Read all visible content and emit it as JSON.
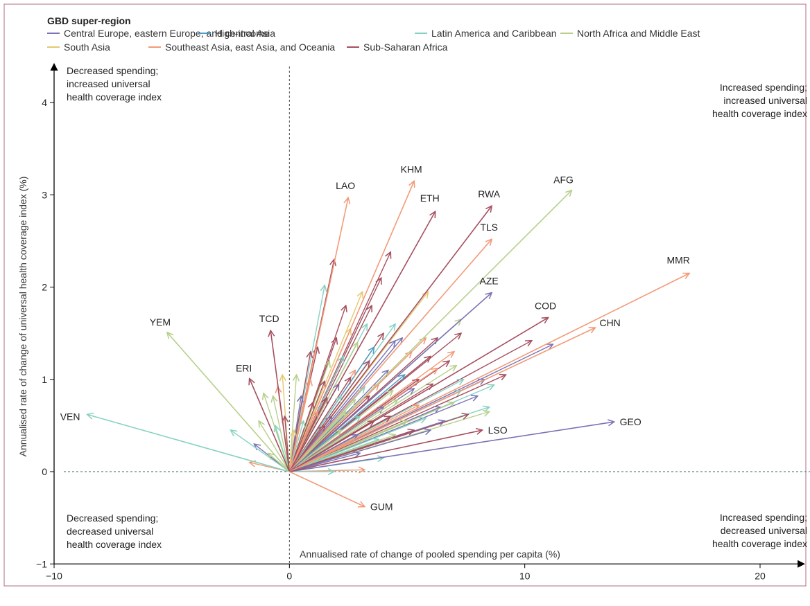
{
  "chart_data": {
    "type": "vector",
    "legend_title": "GBD super-region",
    "xlabel": "Annualised rate of change of pooled spending per capita (%)",
    "ylabel": "Annualised rate of change of universal health coverage index (%)",
    "xlim": [
      -10,
      22
    ],
    "ylim": [
      -1,
      4.4
    ],
    "xticks": [
      "−10",
      "0",
      "10",
      "20"
    ],
    "yticks": [
      "−1",
      "0",
      "1",
      "2",
      "3",
      "4"
    ],
    "quadrants": {
      "top_left": [
        "Decreased spending;",
        "increased universal",
        "health coverage index"
      ],
      "top_right": [
        "Increased spending;",
        "increased universal",
        "health coverage index"
      ],
      "bottom_left": [
        "Decreased spending;",
        "decreased universal",
        "health coverage index"
      ],
      "bottom_right": [
        "Increased spending;",
        "decreased universal",
        "health coverage index"
      ]
    },
    "series": [
      {
        "name": "Central Europe, eastern Europe, and central Asia",
        "color": "#7b73b5"
      },
      {
        "name": "High-income",
        "color": "#4c9cc2"
      },
      {
        "name": "Latin America and Caribbean",
        "color": "#86d2c2"
      },
      {
        "name": "North Africa and Middle East",
        "color": "#b6d08a"
      },
      {
        "name": "South Asia",
        "color": "#e6c872"
      },
      {
        "name": "Southeast Asia, east Asia, and Oceania",
        "color": "#f29a78"
      },
      {
        "name": "Sub-Saharan Africa",
        "color": "#a54f5f"
      }
    ],
    "labeled_vectors": [
      {
        "label": "LAO",
        "x": 2.5,
        "y": 2.97,
        "series": 5
      },
      {
        "label": "KHM",
        "x": 5.3,
        "y": 3.15,
        "series": 5
      },
      {
        "label": "ETH",
        "x": 6.2,
        "y": 2.82,
        "series": 6
      },
      {
        "label": "RWA",
        "x": 8.6,
        "y": 2.88,
        "series": 6
      },
      {
        "label": "AFG",
        "x": 12.0,
        "y": 3.05,
        "series": 3
      },
      {
        "label": "TLS",
        "x": 8.6,
        "y": 2.52,
        "series": 5
      },
      {
        "label": "MMR",
        "x": 17.0,
        "y": 2.15,
        "series": 5
      },
      {
        "label": "AZE",
        "x": 8.6,
        "y": 1.94,
        "series": 0
      },
      {
        "label": "COD",
        "x": 11.0,
        "y": 1.67,
        "series": 6
      },
      {
        "label": "CHN",
        "x": 13.0,
        "y": 1.56,
        "series": 5
      },
      {
        "label": "YEM",
        "x": -5.2,
        "y": 1.51,
        "series": 3
      },
      {
        "label": "TCD",
        "x": -0.8,
        "y": 1.53,
        "series": 6
      },
      {
        "label": "ERI",
        "x": -1.7,
        "y": 1.01,
        "series": 6
      },
      {
        "label": "VEN",
        "x": -8.6,
        "y": 0.62,
        "series": 2
      },
      {
        "label": "GEO",
        "x": 13.8,
        "y": 0.54,
        "series": 0
      },
      {
        "label": "LSO",
        "x": 8.2,
        "y": 0.45,
        "series": 6
      },
      {
        "label": "GUM",
        "x": 3.2,
        "y": -0.38,
        "series": 5
      }
    ],
    "other_vectors": [
      [
        1.9,
        2.3,
        6
      ],
      [
        4.3,
        2.38,
        6
      ],
      [
        3.1,
        1.95,
        4
      ],
      [
        3.9,
        2.1,
        6
      ],
      [
        5.9,
        1.95,
        4
      ],
      [
        1.5,
        2.02,
        2
      ],
      [
        2.4,
        1.8,
        6
      ],
      [
        3.5,
        1.8,
        6
      ],
      [
        7.3,
        1.65,
        3
      ],
      [
        4.5,
        1.6,
        2
      ],
      [
        4.8,
        1.45,
        0
      ],
      [
        5.8,
        1.45,
        5
      ],
      [
        6.3,
        1.45,
        6
      ],
      [
        7.3,
        1.5,
        6
      ],
      [
        1.2,
        1.35,
        6
      ],
      [
        2.0,
        1.45,
        6
      ],
      [
        2.6,
        1.55,
        4
      ],
      [
        3.3,
        1.6,
        2
      ],
      [
        4.0,
        1.5,
        6
      ],
      [
        2.9,
        1.4,
        3
      ],
      [
        3.6,
        1.35,
        1
      ],
      [
        4.5,
        1.42,
        0
      ],
      [
        5.2,
        1.3,
        5
      ],
      [
        6.0,
        1.25,
        6
      ],
      [
        7.0,
        1.3,
        5
      ],
      [
        7.1,
        1.15,
        3
      ],
      [
        6.8,
        1.2,
        6
      ],
      [
        10.3,
        1.42,
        6
      ],
      [
        11.2,
        1.38,
        0
      ],
      [
        0.9,
        1.3,
        6
      ],
      [
        1.7,
        1.2,
        3
      ],
      [
        2.3,
        1.25,
        2
      ],
      [
        2.8,
        1.1,
        5
      ],
      [
        3.4,
        1.2,
        6
      ],
      [
        4.2,
        1.1,
        0
      ],
      [
        4.9,
        1.05,
        1
      ],
      [
        5.5,
        1.0,
        6
      ],
      [
        6.3,
        1.12,
        5
      ],
      [
        7.4,
        1.0,
        2
      ],
      [
        8.3,
        1.0,
        0
      ],
      [
        9.2,
        1.05,
        6
      ],
      [
        0.3,
        1.05,
        3
      ],
      [
        0.9,
        1.0,
        5
      ],
      [
        1.5,
        0.98,
        6
      ],
      [
        2.1,
        0.95,
        0
      ],
      [
        2.6,
        1.02,
        6
      ],
      [
        3.2,
        0.92,
        2
      ],
      [
        3.8,
        0.95,
        5
      ],
      [
        4.4,
        0.88,
        3
      ],
      [
        5.3,
        0.9,
        0
      ],
      [
        6.1,
        0.95,
        6
      ],
      [
        7.3,
        0.88,
        2
      ],
      [
        8.7,
        0.94,
        2
      ],
      [
        0.5,
        0.82,
        0
      ],
      [
        1.0,
        0.75,
        6
      ],
      [
        1.6,
        0.8,
        6
      ],
      [
        2.2,
        0.82,
        2
      ],
      [
        2.8,
        0.78,
        3
      ],
      [
        3.4,
        0.82,
        6
      ],
      [
        4.0,
        0.7,
        0
      ],
      [
        4.6,
        0.78,
        3
      ],
      [
        5.5,
        0.72,
        5
      ],
      [
        6.4,
        0.7,
        0
      ],
      [
        7.0,
        0.75,
        3
      ],
      [
        8.0,
        0.82,
        0
      ],
      [
        8.5,
        0.7,
        2
      ],
      [
        8.5,
        0.65,
        3
      ],
      [
        1.2,
        0.65,
        5
      ],
      [
        1.8,
        0.6,
        0
      ],
      [
        2.4,
        0.65,
        3
      ],
      [
        3.0,
        0.6,
        2
      ],
      [
        3.6,
        0.55,
        6
      ],
      [
        4.3,
        0.6,
        6
      ],
      [
        5.0,
        0.55,
        3
      ],
      [
        5.8,
        0.58,
        2
      ],
      [
        6.6,
        0.55,
        0
      ],
      [
        7.6,
        0.62,
        6
      ],
      [
        0.6,
        0.55,
        2
      ],
      [
        1.5,
        0.5,
        6
      ],
      [
        2.2,
        0.45,
        3
      ],
      [
        2.9,
        0.4,
        0
      ],
      [
        3.8,
        0.35,
        2
      ],
      [
        4.5,
        0.4,
        3
      ],
      [
        5.3,
        0.45,
        6
      ],
      [
        6.0,
        0.45,
        0
      ],
      [
        3.0,
        0.2,
        0
      ],
      [
        4.0,
        0.15,
        2
      ],
      [
        -0.5,
        0.92,
        5
      ],
      [
        -0.7,
        0.82,
        3
      ],
      [
        -0.3,
        1.05,
        4
      ],
      [
        -1.1,
        0.85,
        3
      ],
      [
        -1.3,
        0.55,
        3
      ],
      [
        -1.5,
        0.3,
        0
      ],
      [
        -2.5,
        0.45,
        2
      ],
      [
        -0.6,
        0.5,
        2
      ],
      [
        -0.2,
        0.6,
        6
      ],
      [
        0.2,
        0.45,
        4
      ],
      [
        -1.7,
        0.1,
        5
      ],
      [
        -0.9,
        0.2,
        3
      ],
      [
        3.2,
        0.02,
        5
      ],
      [
        1.9,
        0.0,
        2
      ]
    ]
  }
}
